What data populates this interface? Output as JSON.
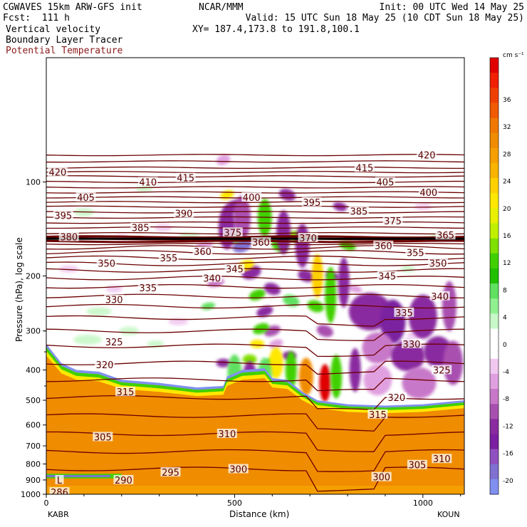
{
  "header": {
    "left_line1": "CGWAVES 15km ARW-GFS init",
    "left_line2": "Fcst:  111 h",
    "center_line1": "NCAR/MMM",
    "right_line1": "Init: 00 UTC Wed 14 May 25",
    "right_line2": "Valid: 15 UTC Sun 18 May 25 (10 CDT Sun 18 May 25)",
    "field1": "Vertical velocity",
    "field2": "Boundary Layer Tracer",
    "field3": "Potential Temperature",
    "xy": "XY= 187.4,173.8 to 191.8,100.1"
  },
  "colors": {
    "theta_contour": "#6b0000",
    "field3_text": "#8b1a1a",
    "tracer_orange": "#f08c00"
  },
  "chart_data": {
    "type": "cross-section",
    "xlabel": "Distance (km)",
    "ylabel": "Pressure (hPa), log scale",
    "x_ticks": [
      "0",
      "500",
      "1000"
    ],
    "x_range": [
      0,
      1110
    ],
    "y_ticks": [
      "100",
      "200",
      "300",
      "400",
      "500",
      "600",
      "700",
      "800",
      "900",
      "1000"
    ],
    "y_range": [
      1000,
      40
    ],
    "y_scale": "log",
    "left_endpoint": "KABR",
    "right_endpoint": "KOUN",
    "colorbar": {
      "unit": "cm s⁻¹",
      "labels": [
        "36",
        "32",
        "28",
        "24",
        "20",
        "16",
        "12",
        "8",
        "4",
        "0",
        "-4",
        "-8",
        "-12",
        "-16",
        "-20"
      ],
      "colors": [
        "#e00000",
        "#f02000",
        "#f04000",
        "#f05a00",
        "#f07800",
        "#f08c00",
        "#f5a000",
        "#f8b400",
        "#ffd000",
        "#ffe800",
        "#e8f000",
        "#c0f000",
        "#80e000",
        "#40d000",
        "#20c000",
        "#60e060",
        "#90f090",
        "#c8f8c8",
        "#ffffff",
        "#ffffff",
        "#f0c8f0",
        "#e0a0e0",
        "#c878c8",
        "#a850b0",
        "#8a2ca0",
        "#7a20a0",
        "#9050c0",
        "#8070d0",
        "#8090f0"
      ]
    },
    "theta_labels": [
      {
        "text": "420",
        "x": 30,
        "p": 93
      },
      {
        "text": "405",
        "x": 105,
        "p": 112
      },
      {
        "text": "410",
        "x": 270,
        "p": 100
      },
      {
        "text": "415",
        "x": 370,
        "p": 97
      },
      {
        "text": "395",
        "x": 45,
        "p": 128
      },
      {
        "text": "380",
        "x": 60,
        "p": 150
      },
      {
        "text": "385",
        "x": 250,
        "p": 140
      },
      {
        "text": "390",
        "x": 365,
        "p": 126
      },
      {
        "text": "375",
        "x": 495,
        "p": 145
      },
      {
        "text": "400",
        "x": 545,
        "p": 112
      },
      {
        "text": "395",
        "x": 705,
        "p": 116
      },
      {
        "text": "385",
        "x": 830,
        "p": 124
      },
      {
        "text": "415",
        "x": 845,
        "p": 90
      },
      {
        "text": "405",
        "x": 900,
        "p": 100
      },
      {
        "text": "420",
        "x": 1010,
        "p": 82
      },
      {
        "text": "400",
        "x": 1015,
        "p": 108
      },
      {
        "text": "375",
        "x": 920,
        "p": 133
      },
      {
        "text": "365",
        "x": 1060,
        "p": 148
      },
      {
        "text": "370",
        "x": 695,
        "p": 151
      },
      {
        "text": "360",
        "x": 570,
        "p": 156
      },
      {
        "text": "360",
        "x": 895,
        "p": 160
      },
      {
        "text": "360",
        "x": 415,
        "p": 167
      },
      {
        "text": "355",
        "x": 325,
        "p": 175
      },
      {
        "text": "355",
        "x": 980,
        "p": 168
      },
      {
        "text": "350",
        "x": 160,
        "p": 182
      },
      {
        "text": "350",
        "x": 1040,
        "p": 182
      },
      {
        "text": "345",
        "x": 500,
        "p": 190
      },
      {
        "text": "345",
        "x": 905,
        "p": 200
      },
      {
        "text": "340",
        "x": 440,
        "p": 203
      },
      {
        "text": "340",
        "x": 1045,
        "p": 232
      },
      {
        "text": "335",
        "x": 270,
        "p": 218
      },
      {
        "text": "335",
        "x": 950,
        "p": 262
      },
      {
        "text": "330",
        "x": 180,
        "p": 238
      },
      {
        "text": "330",
        "x": 970,
        "p": 330
      },
      {
        "text": "325",
        "x": 180,
        "p": 325
      },
      {
        "text": "325",
        "x": 1050,
        "p": 400
      },
      {
        "text": "320",
        "x": 155,
        "p": 385
      },
      {
        "text": "320",
        "x": 930,
        "p": 490
      },
      {
        "text": "315",
        "x": 210,
        "p": 470
      },
      {
        "text": "315",
        "x": 880,
        "p": 555
      },
      {
        "text": "310",
        "x": 480,
        "p": 640
      },
      {
        "text": "310",
        "x": 1050,
        "p": 770
      },
      {
        "text": "305",
        "x": 150,
        "p": 655
      },
      {
        "text": "305",
        "x": 985,
        "p": 805
      },
      {
        "text": "300",
        "x": 510,
        "p": 830
      },
      {
        "text": "300",
        "x": 890,
        "p": 880
      },
      {
        "text": "295",
        "x": 330,
        "p": 850
      },
      {
        "text": "290",
        "x": 205,
        "p": 900
      },
      {
        "text": "286",
        "x": 35,
        "p": 985
      },
      {
        "text": "L",
        "x": 35,
        "p": 900
      }
    ]
  }
}
